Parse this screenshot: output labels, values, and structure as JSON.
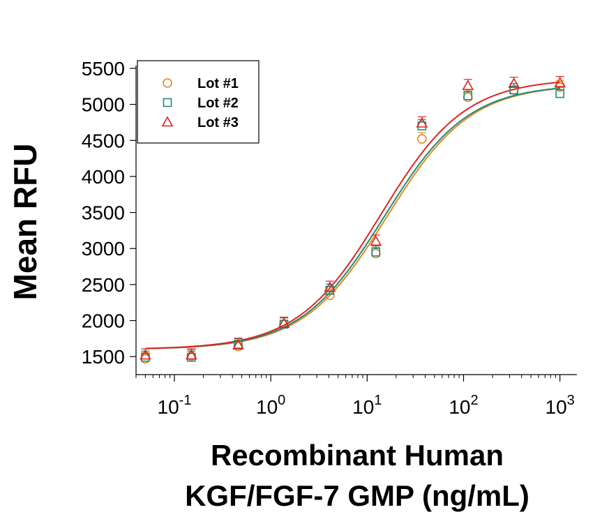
{
  "chart_data": {
    "type": "scatter",
    "title": "",
    "ylabel": "Mean RFU",
    "xlabel_lines": [
      "Recombinant Human",
      "KGF/FGF-7 GMP (ng/mL)"
    ],
    "xscale": "log",
    "xlim": [
      0.04,
      1500
    ],
    "ylim": [
      1250,
      5500
    ],
    "y_ticks": [
      1500,
      2000,
      2500,
      3000,
      3500,
      4000,
      4500,
      5000,
      5500
    ],
    "x_ticks": [
      {
        "value": 0.1,
        "base": "10",
        "exp": "-1"
      },
      {
        "value": 1,
        "base": "10",
        "exp": "0"
      },
      {
        "value": 10,
        "base": "10",
        "exp": "1"
      },
      {
        "value": 100,
        "base": "10",
        "exp": "2"
      },
      {
        "value": 1000,
        "base": "10",
        "exp": "3"
      }
    ],
    "legend_position": "top-left",
    "x": [
      0.05,
      0.15,
      0.46,
      1.37,
      4.1,
      12.3,
      37,
      111,
      333,
      1000
    ],
    "series": [
      {
        "name": "Lot #1",
        "marker": "circle",
        "color": "#E08A1E",
        "values": [
          1470,
          1510,
          1640,
          1950,
          2350,
          2930,
          4520,
          5100,
          5200,
          5240
        ],
        "fit": {
          "bottom": 1600,
          "top": 5280,
          "ec50": 16.0,
          "hill": 1.0
        }
      },
      {
        "name": "Lot #2",
        "marker": "square",
        "color": "#1F8A7A",
        "values": [
          1490,
          1490,
          1670,
          1950,
          2420,
          2950,
          4700,
          5120,
          5200,
          5150
        ],
        "fit": {
          "bottom": 1600,
          "top": 5280,
          "ec50": 15.0,
          "hill": 1.0
        }
      },
      {
        "name": "Lot #3",
        "marker": "triangle",
        "color": "#E0231F",
        "values": [
          1520,
          1520,
          1660,
          1960,
          2460,
          3100,
          4740,
          5260,
          5290,
          5300
        ],
        "fit": {
          "bottom": 1600,
          "top": 5360,
          "ec50": 14.0,
          "hill": 1.0
        }
      }
    ]
  }
}
